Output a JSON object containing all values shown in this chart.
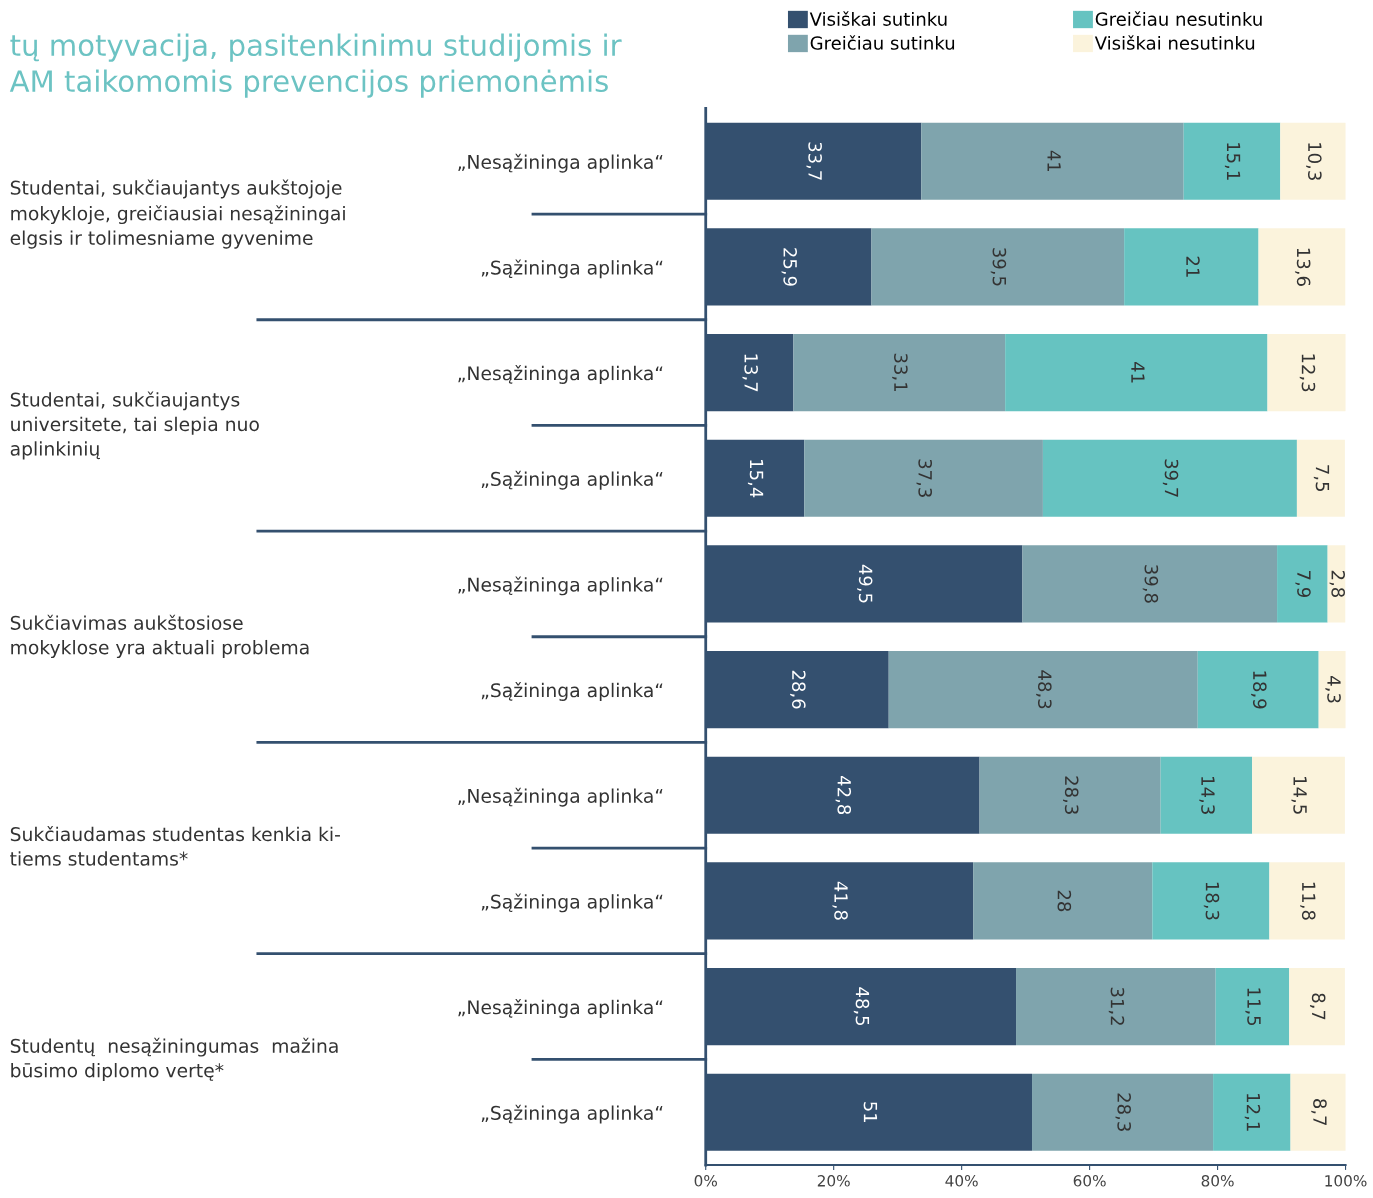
{
  "chart_data": {
    "type": "bar",
    "orientation": "horizontal",
    "stacked": true,
    "title": "tų motyvacija, pasitenkinimu studijomis ir\nAM taikomomis prevencijos priemonėmis",
    "categories": [
      "„Nesąžininga aplinka“",
      "„Sąžininga aplinka“",
      "„Nesąžininga aplinka“",
      "„Sąžininga aplinka“",
      "„Nesąžininga aplinka“",
      "„Sąžininga aplinka“",
      "„Nesąžininga aplinka“",
      "„Sąžininga aplinka“",
      "„Nesąžininga aplinka“",
      "„Sąžininga aplinka“"
    ],
    "series": [
      {
        "name": "Visiškai sutinku",
        "color": "#34506f",
        "values": [
          33.7,
          25.9,
          13.7,
          15.4,
          49.5,
          28.6,
          42.8,
          41.8,
          48.5,
          51
        ],
        "value_labels": [
          "33,7",
          "25,9",
          "13,7",
          "15,4",
          "49,5",
          "28,6",
          "42,8",
          "41,8",
          "48,5",
          "51"
        ]
      },
      {
        "name": "Greičiau sutinku",
        "color": "#7fa4ad",
        "values": [
          41,
          39.5,
          33.1,
          37.3,
          39.8,
          48.3,
          28.3,
          28,
          31.2,
          28.3
        ],
        "value_labels": [
          "41",
          "39,5",
          "33,1",
          "37,3",
          "39,8",
          "48,3",
          "28,3",
          "28",
          "31,2",
          "28,3"
        ]
      },
      {
        "name": "Greičiau nesutinku",
        "color": "#66c3c1",
        "values": [
          15.1,
          21,
          41,
          39.7,
          7.9,
          18.9,
          14.3,
          18.3,
          11.5,
          12.1
        ],
        "value_labels": [
          "15,1",
          "21",
          "41",
          "39,7",
          "7,9",
          "18,9",
          "14,3",
          "18,3",
          "11,5",
          "12,1"
        ]
      },
      {
        "name": "Visiškai nesutinku",
        "color": "#fbf3dc",
        "values": [
          10.3,
          13.6,
          12.3,
          7.5,
          2.8,
          4.3,
          14.5,
          11.8,
          8.7,
          8.7
        ],
        "value_labels": [
          "10,3",
          "13,6",
          "12,3",
          "7,5",
          "2,8",
          "4,3",
          "14,5",
          "11,8",
          "8,7",
          "8,7"
        ]
      }
    ],
    "xlim": [
      0,
      100
    ],
    "xticks": [
      {
        "value": 0,
        "label": "0%"
      },
      {
        "value": 20,
        "label": "20%"
      },
      {
        "value": 40,
        "label": "40%"
      },
      {
        "value": 60,
        "label": "60%"
      },
      {
        "value": 80,
        "label": "80%"
      },
      {
        "value": 100,
        "label": "100%"
      }
    ],
    "grid": false,
    "legend": "top",
    "annotations": [
      "Studentai, sukčiaujantys aukštojoje\nmokykloje, greičiausiai nesąžiningai\nelgsis ir tolimesniame gyvenime",
      "Studentai, sukčiaujantys\nuniversitete, tai slepia nuo\naplinkinių",
      "Sukčiavimas aukštosiose\nmokyklose yra aktuali problema",
      "Sukčiaudamas studentas kenkia ki-\ntiems studentams*",
      "Studentų  nesąžiningumas  mažina\nbūsimo diplomo vertę*"
    ]
  }
}
